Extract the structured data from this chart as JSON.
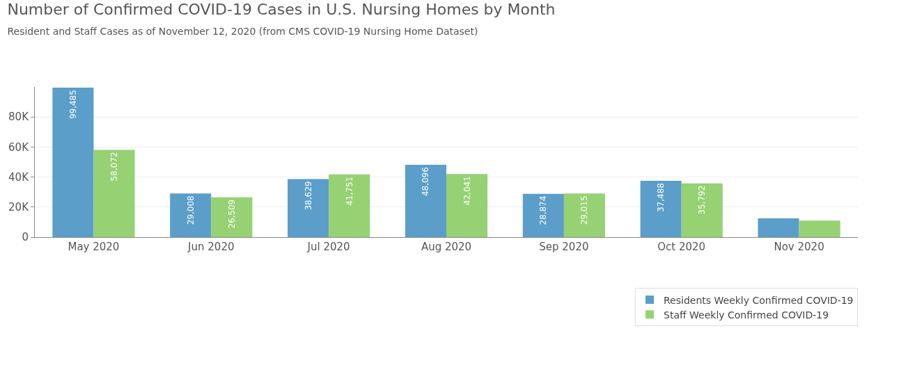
{
  "chart_data": {
    "type": "bar",
    "title": "Number of Confirmed COVID-19 Cases in U.S. Nursing Homes by Month",
    "subtitle": "Resident and Staff Cases as of November 12, 2020 (from CMS COVID-19 Nursing Home Dataset)",
    "categories": [
      "May 2020",
      "Jun 2020",
      "Jul 2020",
      "Aug 2020",
      "Sep 2020",
      "Oct 2020",
      "Nov 2020"
    ],
    "series": [
      {
        "name": "Residents Weekly Confirmed COVID-19",
        "color": "#5b9ec9",
        "values": [
          99485,
          29008,
          38629,
          48096,
          28874,
          37488,
          12500
        ],
        "value_labels": [
          "99,485",
          "29,008",
          "38,629",
          "48,096",
          "28,874",
          "37,488",
          null
        ]
      },
      {
        "name": "Staff Weekly Confirmed COVID-19",
        "color": "#96d173",
        "values": [
          58072,
          26509,
          41751,
          42041,
          29015,
          35792,
          11000
        ],
        "value_labels": [
          "58,072",
          "26,509",
          "41,751",
          "42,041",
          "29,015",
          "35,792",
          null
        ]
      }
    ],
    "ylim": [
      0,
      100000
    ],
    "yticks": [
      {
        "value": 0,
        "label": "0"
      },
      {
        "value": 20000,
        "label": "20K"
      },
      {
        "value": 40000,
        "label": "40K"
      },
      {
        "value": 60000,
        "label": "60K"
      },
      {
        "value": 80000,
        "label": "80K"
      }
    ],
    "grid": "y",
    "legend": "bottom right"
  }
}
